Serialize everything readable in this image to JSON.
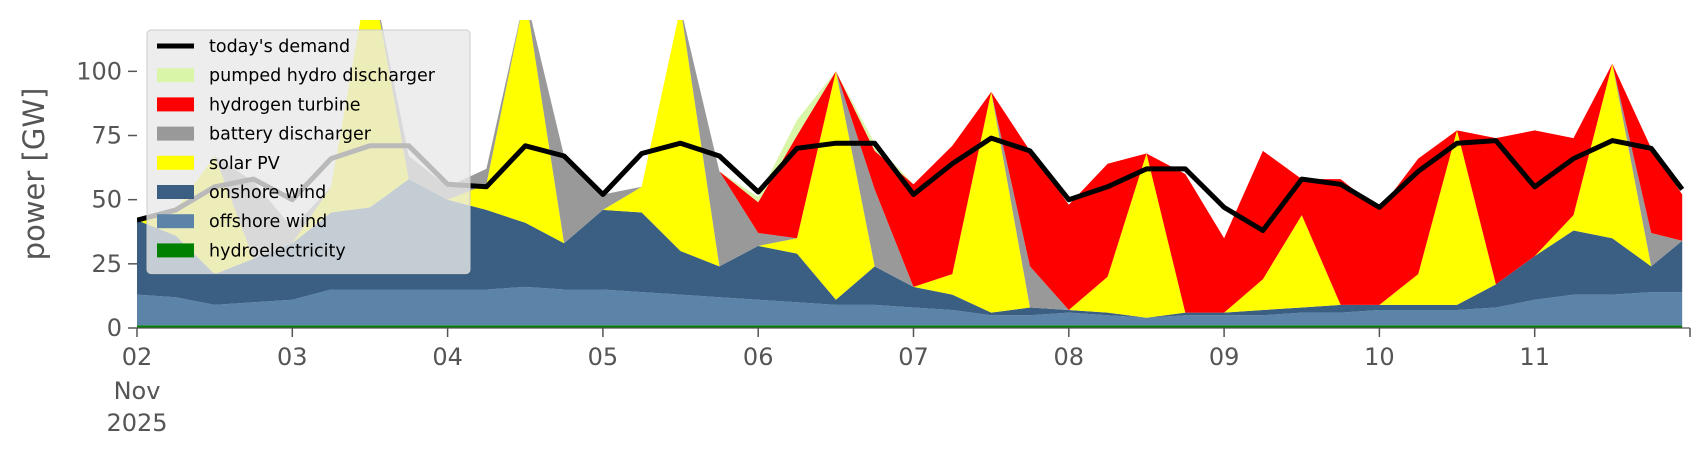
{
  "chart_data": {
    "type": "area",
    "title": "",
    "xlabel": "",
    "ylabel": "power [GW]",
    "ylim": [
      0,
      120
    ],
    "y_ticks": [
      0,
      25,
      50,
      75,
      100
    ],
    "x_ticks": [
      {
        "day": 2,
        "label": "02",
        "sub": [
          "Nov",
          "2025"
        ]
      },
      {
        "day": 3,
        "label": "03"
      },
      {
        "day": 4,
        "label": "04"
      },
      {
        "day": 5,
        "label": "05"
      },
      {
        "day": 6,
        "label": "06"
      },
      {
        "day": 7,
        "label": "07"
      },
      {
        "day": 8,
        "label": "08"
      },
      {
        "day": 9,
        "label": "09"
      },
      {
        "day": 10,
        "label": "10"
      },
      {
        "day": 11,
        "label": "11"
      }
    ],
    "grid": false,
    "legend_position": "top-left",
    "x_days": [
      2.0,
      2.25,
      2.5,
      2.75,
      3.0,
      3.25,
      3.5,
      3.75,
      4.0,
      4.25,
      4.5,
      4.75,
      5.0,
      5.25,
      5.5,
      5.75,
      6.0,
      6.25,
      6.5,
      6.75,
      7.0,
      7.25,
      7.5,
      7.75,
      8.0,
      8.25,
      8.5,
      8.75,
      9.0,
      9.25,
      9.5,
      9.75,
      10.0,
      10.25,
      10.5,
      10.75,
      11.0,
      11.25,
      11.5,
      11.75,
      11.95
    ],
    "series": [
      {
        "name": "hydroelectricity",
        "color": "#008000",
        "values": [
          1,
          1,
          1,
          1,
          1,
          1,
          1,
          1,
          1,
          1,
          1,
          1,
          1,
          1,
          1,
          1,
          1,
          1,
          1,
          1,
          1,
          1,
          1,
          1,
          1,
          1,
          1,
          1,
          1,
          1,
          1,
          1,
          1,
          1,
          1,
          1,
          1,
          1,
          1,
          1,
          1
        ]
      },
      {
        "name": "offshore wind",
        "color": "#5b84a8",
        "values": [
          12,
          11,
          8,
          9,
          10,
          14,
          14,
          14,
          14,
          14,
          15,
          14,
          14,
          13,
          12,
          11,
          10,
          9,
          8,
          8,
          7,
          6,
          4,
          4,
          5,
          4,
          3,
          4,
          4,
          4,
          5,
          5,
          6,
          6,
          6,
          7,
          10,
          12,
          12,
          13,
          13
        ]
      },
      {
        "name": "onshore wind",
        "color": "#3a5f82",
        "values": [
          29,
          24,
          12,
          17,
          22,
          30,
          32,
          43,
          35,
          31,
          25,
          18,
          31,
          31,
          17,
          12,
          21,
          19,
          2,
          15,
          8,
          6,
          1,
          3,
          1,
          1,
          0,
          1,
          1,
          2,
          2,
          3,
          2,
          2,
          2,
          9,
          17,
          25,
          22,
          10,
          20
        ]
      },
      {
        "name": "solar PV",
        "color": "#ffff00",
        "values": [
          0,
          10,
          46,
          0,
          0,
          10,
          94,
          0,
          0,
          10,
          89,
          0,
          0,
          10,
          95,
          0,
          0,
          6,
          89,
          0,
          0,
          8,
          86,
          0,
          0,
          14,
          64,
          0,
          0,
          12,
          36,
          0,
          0,
          12,
          68,
          0,
          0,
          6,
          68,
          0,
          0
        ]
      },
      {
        "name": "battery discharger",
        "color": "#999999",
        "values": [
          0,
          0,
          0,
          30,
          6,
          0,
          0,
          9,
          5,
          6,
          0,
          34,
          6,
          0,
          0,
          37,
          5,
          0,
          0,
          30,
          0,
          0,
          0,
          16,
          0,
          0,
          0,
          0,
          0,
          0,
          0,
          0,
          0,
          0,
          0,
          0,
          0,
          0,
          0,
          13,
          0
        ]
      },
      {
        "name": "hydrogen turbine",
        "color": "#ff0000",
        "values": [
          0,
          0,
          0,
          0,
          0,
          0,
          0,
          0,
          0,
          0,
          0,
          0,
          0,
          0,
          0,
          0,
          12,
          40,
          0,
          15,
          40,
          50,
          0,
          45,
          41,
          44,
          0,
          54,
          29,
          50,
          14,
          49,
          37,
          45,
          0,
          57,
          49,
          30,
          0,
          33,
          18
        ]
      },
      {
        "name": "pumped hydro discharger",
        "color": "#d9f5a8",
        "values": [
          0,
          0,
          0,
          0,
          0,
          0,
          0,
          0,
          0,
          0,
          0,
          0,
          0,
          0,
          0,
          0,
          2,
          6,
          0,
          3,
          0,
          0,
          0,
          0,
          0,
          0,
          0,
          0,
          0,
          0,
          0,
          0,
          0,
          0,
          0,
          0,
          0,
          0,
          0,
          0,
          0
        ]
      }
    ],
    "demand": {
      "name": "today's demand",
      "color": "#000000",
      "values": [
        42,
        46,
        55,
        58,
        50,
        66,
        71,
        71,
        56,
        55,
        71,
        67,
        52,
        68,
        72,
        67,
        53,
        70,
        72,
        72,
        52,
        64,
        74,
        69,
        50,
        55,
        62,
        62,
        47,
        38,
        58,
        56,
        47,
        61,
        72,
        73,
        55,
        66,
        73,
        70,
        54
      ]
    }
  }
}
